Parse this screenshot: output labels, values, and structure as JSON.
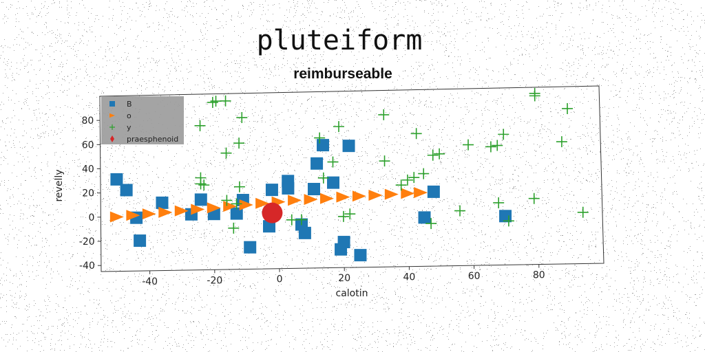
{
  "chart_data": {
    "type": "scatter",
    "title": "pluteiform",
    "subtitle": "reimburseable",
    "xlabel": "calotin",
    "ylabel": "revelly",
    "xlim": [
      -55,
      100
    ],
    "ylim": [
      -45,
      100
    ],
    "xticks": [
      -40,
      -20,
      0,
      20,
      40,
      60,
      80
    ],
    "yticks": [
      -40,
      -20,
      0,
      20,
      40,
      60,
      80
    ],
    "grid": false,
    "legend_position": "top-left",
    "series": [
      {
        "name": "B",
        "marker": "square",
        "color": "#1f77b4",
        "points": [
          [
            -50,
            31
          ],
          [
            -47,
            22
          ],
          [
            -44,
            -1
          ],
          [
            -43,
            -20
          ],
          [
            -36,
            11
          ],
          [
            -27,
            1
          ],
          [
            -24,
            13
          ],
          [
            -20,
            1
          ],
          [
            -13,
            1
          ],
          [
            -11,
            12
          ],
          [
            -9,
            -27
          ],
          [
            -3,
            -10
          ],
          [
            -2,
            20
          ],
          [
            3,
            27
          ],
          [
            3,
            21
          ],
          [
            7,
            -9
          ],
          [
            8,
            -16
          ],
          [
            11,
            20
          ],
          [
            12,
            41
          ],
          [
            14,
            56
          ],
          [
            17,
            25
          ],
          [
            19,
            -30
          ],
          [
            20,
            -24
          ],
          [
            22,
            55
          ],
          [
            25,
            -35
          ],
          [
            45,
            -5
          ],
          [
            48,
            16
          ],
          [
            70,
            -5
          ]
        ]
      },
      {
        "name": "o",
        "marker": "triangle-right",
        "color": "#ff7f0e",
        "points": [
          [
            -50,
            0
          ],
          [
            -45,
            1
          ],
          [
            -40,
            2
          ],
          [
            -35,
            3
          ],
          [
            -30,
            4
          ],
          [
            -25,
            5
          ],
          [
            -20,
            6
          ],
          [
            -15,
            7
          ],
          [
            -10,
            8
          ],
          [
            -5,
            9
          ],
          [
            0,
            10
          ],
          [
            5,
            11
          ],
          [
            10,
            11.5
          ],
          [
            15,
            12
          ],
          [
            20,
            13
          ],
          [
            25,
            13.5
          ],
          [
            30,
            14
          ],
          [
            35,
            14.5
          ],
          [
            40,
            15
          ],
          [
            44,
            15.5
          ]
        ]
      },
      {
        "name": "y",
        "marker": "plus",
        "color": "#2ca02c",
        "points": [
          [
            -20,
            93
          ],
          [
            -19,
            94
          ],
          [
            -16,
            94
          ],
          [
            -24,
            74
          ],
          [
            -11,
            80
          ],
          [
            -12,
            59
          ],
          [
            -16,
            51
          ],
          [
            -12,
            23
          ],
          [
            -24,
            31
          ],
          [
            -24,
            26
          ],
          [
            -16,
            12
          ],
          [
            -13,
            9
          ],
          [
            -14,
            -11
          ],
          [
            -23,
            25
          ],
          [
            4,
            -5
          ],
          [
            7,
            -5
          ],
          [
            14,
            29
          ],
          [
            13,
            62
          ],
          [
            17,
            42
          ],
          [
            19,
            71
          ],
          [
            20,
            -3
          ],
          [
            22,
            -1
          ],
          [
            33,
            80
          ],
          [
            33,
            42
          ],
          [
            38,
            22
          ],
          [
            40,
            26
          ],
          [
            42,
            28
          ],
          [
            43,
            64
          ],
          [
            45,
            31
          ],
          [
            48,
            46
          ],
          [
            50,
            47
          ],
          [
            47,
            -10
          ],
          [
            56,
            0
          ],
          [
            59,
            54
          ],
          [
            66,
            52
          ],
          [
            68,
            53
          ],
          [
            70,
            62
          ],
          [
            71,
            -9
          ],
          [
            68,
            6
          ],
          [
            80,
            93
          ],
          [
            80,
            95
          ],
          [
            79,
            9
          ],
          [
            88,
            55
          ],
          [
            90,
            82
          ],
          [
            94,
            -3
          ]
        ]
      },
      {
        "name": "praesphenoid",
        "marker": "diamond",
        "color": "#d62728",
        "points": [
          [
            -2,
            1
          ]
        ]
      }
    ]
  }
}
